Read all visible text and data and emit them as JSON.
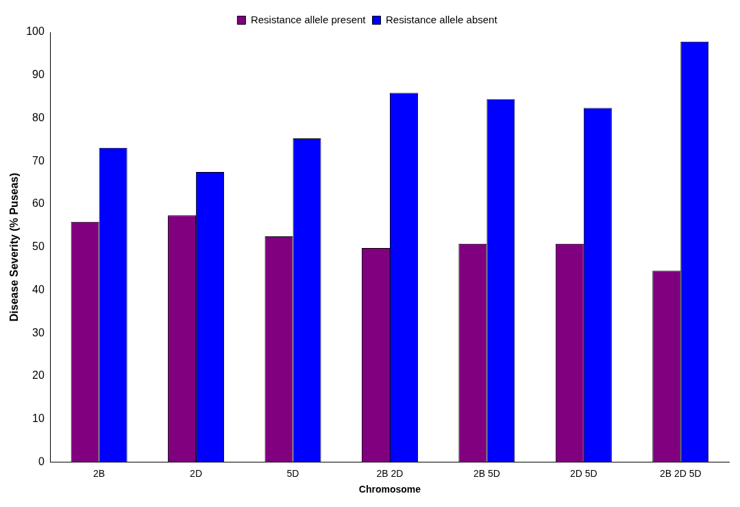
{
  "chart_data": {
    "type": "bar",
    "xlabel": "Chromosome",
    "ylabel": "Disease Severity (% Puseas)",
    "categories": [
      "2B",
      "2D",
      "5D",
      "2B 2D",
      "2B 5D",
      "2D 5D",
      "2B 2D 5D"
    ],
    "series": [
      {
        "name": "Resistance allele present",
        "color": "#800080",
        "values": [
          55.9,
          57.4,
          52.5,
          49.8,
          50.8,
          50.8,
          44.5
        ]
      },
      {
        "name": "Resistance allele absent",
        "color": "#0000ff",
        "values": [
          73.1,
          67.5,
          75.3,
          85.9,
          84.4,
          82.4,
          97.8
        ]
      }
    ],
    "ylim": [
      0,
      100
    ],
    "yticks": [
      0,
      10,
      20,
      30,
      40,
      50,
      60,
      70,
      80,
      90,
      100
    ],
    "grid": false,
    "legend": "top"
  }
}
